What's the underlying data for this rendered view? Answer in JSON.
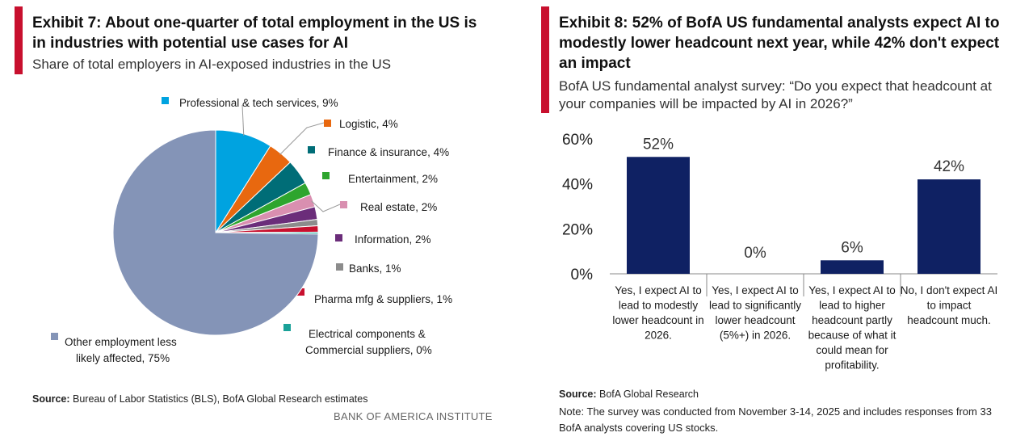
{
  "left": {
    "title": "Exhibit 7: About one-quarter of total employment in the US is in industries with potential use cases for AI",
    "subtitle": "Share of total employers in AI-exposed industries in the US",
    "source_label": "Source:",
    "source_text": " Bureau of Labor Statistics (BLS), BofA Global Research estimates",
    "footer": "BANK OF AMERICA INSTITUTE"
  },
  "right": {
    "title": "Exhibit 8: 52% of BofA US fundamental analysts expect AI to modestly lower headcount next year, while 42% don't expect an impact",
    "subtitle": "BofA US fundamental analyst survey: “Do you expect that headcount at your companies will be impacted by AI in 2026?”",
    "source_label": "Source:",
    "source_text": " BofA Global Research",
    "note": "Note: The survey was conducted from November 3-14, 2025 and includes responses from 33 BofA analysts covering US stocks."
  },
  "chart_data": [
    {
      "type": "pie",
      "slices": [
        {
          "label": "Professional & tech services, 9%",
          "value": 9,
          "color": "#00a3e0"
        },
        {
          "label": "Logistic, 4%",
          "value": 4,
          "color": "#e8680f"
        },
        {
          "label": "Finance & insurance, 4%",
          "value": 4,
          "color": "#006d77"
        },
        {
          "label": "Entertainment, 2%",
          "value": 2,
          "color": "#2ea52e"
        },
        {
          "label": "Real estate, 2%",
          "value": 2,
          "color": "#d98fb0"
        },
        {
          "label": "Information, 2%",
          "value": 2,
          "color": "#6b2d7a"
        },
        {
          "label": "Banks, 1%",
          "value": 1,
          "color": "#8c8c8c"
        },
        {
          "label": "Pharma mfg & suppliers, 1%",
          "value": 1,
          "color": "#c8102e"
        },
        {
          "label": "Electrical components & Commercial suppliers, 0%",
          "value": 0.3,
          "color": "#1aa198"
        },
        {
          "label": "Other employment less likely affected, 75%",
          "value": 75,
          "color": "#8494b7"
        }
      ]
    },
    {
      "type": "bar",
      "categories": [
        "Yes, I expect AI to lead to modestly lower headcount in 2026.",
        "Yes, I expect AI to lead to significantly lower headcount (5%+) in 2026.",
        "Yes, I expect AI to lead to higher headcount partly because of what it could mean for profitability.",
        "No, I don't expect AI to impact headcount much."
      ],
      "category_lines": [
        [
          "Yes, I expect AI to",
          "lead to modestly",
          "lower headcount in",
          "2026."
        ],
        [
          "Yes, I expect AI to",
          "lead to significantly",
          "lower headcount",
          "(5%+) in 2026."
        ],
        [
          "Yes, I expect AI to",
          "lead to higher",
          "headcount partly",
          "because of what it",
          "could mean for",
          "profitability."
        ],
        [
          "No, I don't expect AI",
          "to impact",
          "headcount much."
        ]
      ],
      "values": [
        52,
        0,
        6,
        42
      ],
      "data_labels": [
        "52%",
        "0%",
        "6%",
        "42%"
      ],
      "yticks": [
        "0%",
        "20%",
        "40%",
        "60%"
      ],
      "ylim": [
        0,
        60
      ],
      "bar_color": "#0f2163",
      "xlabel": "",
      "ylabel": ""
    }
  ]
}
